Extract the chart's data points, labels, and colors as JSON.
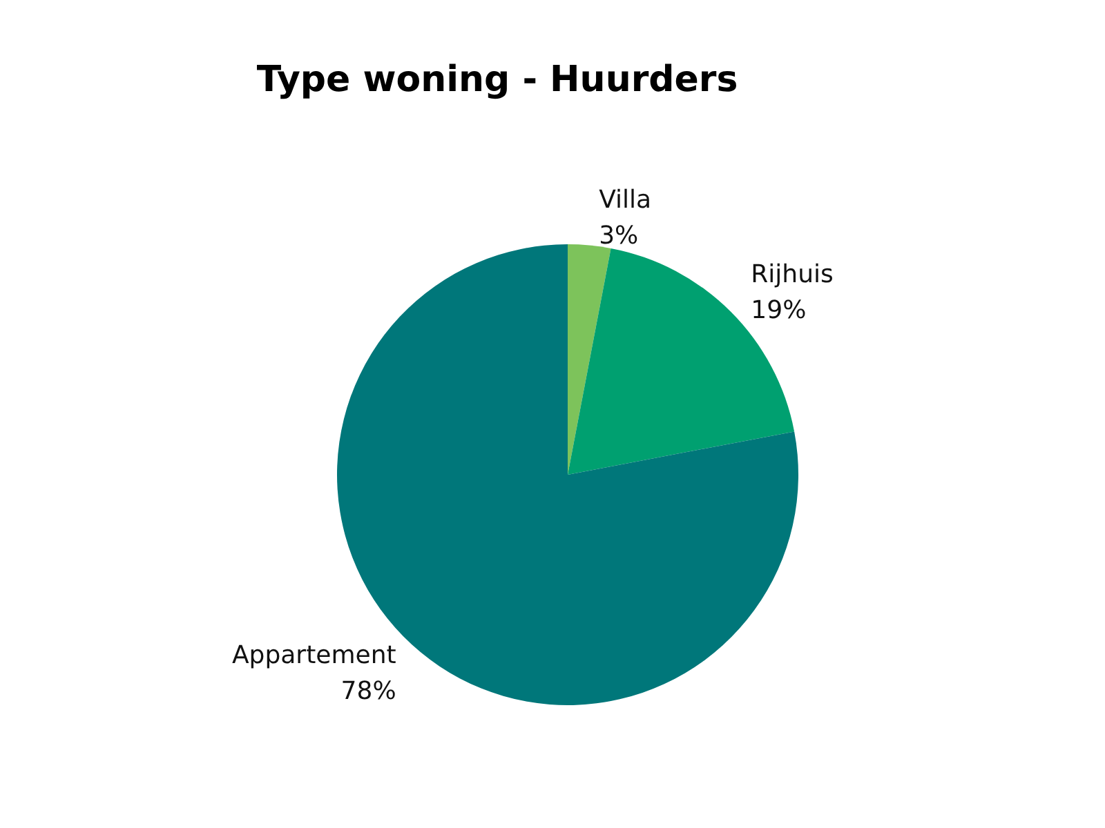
{
  "chart_data": {
    "type": "pie",
    "title": "Type woning - Huurders",
    "categories": [
      "Villa",
      "Rijhuis",
      "Appartement"
    ],
    "values": [
      3,
      19,
      78
    ],
    "value_labels": [
      "3%",
      "19%",
      "78%"
    ],
    "colors": [
      "#7dc35b",
      "#00a070",
      "#00777a"
    ],
    "legend": false
  }
}
